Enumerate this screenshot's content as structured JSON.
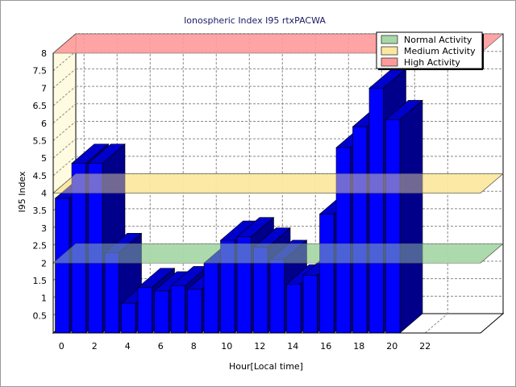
{
  "chart_data": {
    "type": "bar",
    "title": "Ionospheric Index I95 rtxPACWA",
    "xlabel": "Hour[Local time]",
    "ylabel": "I95 Index",
    "x": [
      0,
      1,
      2,
      3,
      4,
      5,
      6,
      7,
      8,
      9,
      10,
      11,
      12,
      13,
      14,
      15,
      16,
      17,
      18,
      19,
      20,
      21
    ],
    "values": [
      3.85,
      4.85,
      4.85,
      2.3,
      0.85,
      1.3,
      1.2,
      1.35,
      1.25,
      2.0,
      2.65,
      2.75,
      2.45,
      2.1,
      1.4,
      1.65,
      3.4,
      5.3,
      5.9,
      7.0,
      6.1,
      null
    ],
    "xticks": [
      "0",
      "2",
      "4",
      "6",
      "8",
      "10",
      "12",
      "14",
      "16",
      "18",
      "20",
      "22"
    ],
    "yticks": [
      "0.5",
      "1",
      "1.5",
      "2",
      "2.5",
      "3",
      "3.5",
      "4",
      "4.5",
      "5",
      "5.5",
      "6",
      "6.5",
      "7",
      "7.5",
      "8"
    ],
    "ylim": [
      0,
      8
    ],
    "grid": true,
    "legend_position": "top-right",
    "bands": [
      {
        "name": "Normal Activity",
        "value": 2,
        "color": "#a8d8a8"
      },
      {
        "name": "Medium Activity",
        "value": 4,
        "color": "#fbe8a0"
      },
      {
        "name": "High Activity",
        "value": 8,
        "color": "#ff9a9a"
      }
    ],
    "colors": {
      "bar_front": "#0000ff",
      "bar_top": "#0000cc",
      "bar_side": "#00008b"
    }
  }
}
